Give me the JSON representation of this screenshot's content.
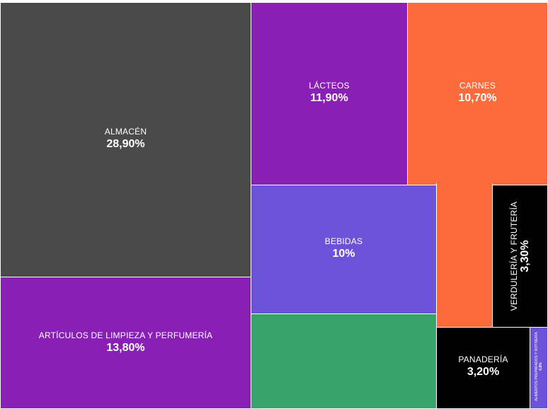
{
  "chart_data": {
    "type": "treemap",
    "value_format": "percent",
    "items": [
      {
        "name": "ALMACÉN",
        "label": "28,90%",
        "value": 28.9,
        "color": "#4a4a4a"
      },
      {
        "name": "ARTÍCULOS DE LIMPIEZA Y PERFUMERÍA",
        "label": "13,80%",
        "value": 13.8,
        "color": "#8a1fb5"
      },
      {
        "name": "LÁCTEOS",
        "label": "11,90%",
        "value": 11.9,
        "color": "#8a1fb5"
      },
      {
        "name": "CARNES",
        "label": "10,70%",
        "value": 10.7,
        "color": "#fb6b3b"
      },
      {
        "name": "BEBIDAS",
        "label": "10%",
        "value": 10.0,
        "color": "#6b52d8"
      },
      {
        "name": "",
        "label": "",
        "value": 8.0,
        "color": "#38a36b"
      },
      {
        "name": "VERDULERÍA Y FRUTERÍA",
        "label": "3,30%",
        "value": 3.3,
        "color": "#000000"
      },
      {
        "name": "PANADERÍA",
        "label": "3,20%",
        "value": 3.2,
        "color": "#000000"
      },
      {
        "name": "ALIMENTOS PREPARADOS Y ROTISERÍA",
        "label": "0,6%",
        "value": 0.6,
        "color": "#6b52d8"
      }
    ]
  }
}
